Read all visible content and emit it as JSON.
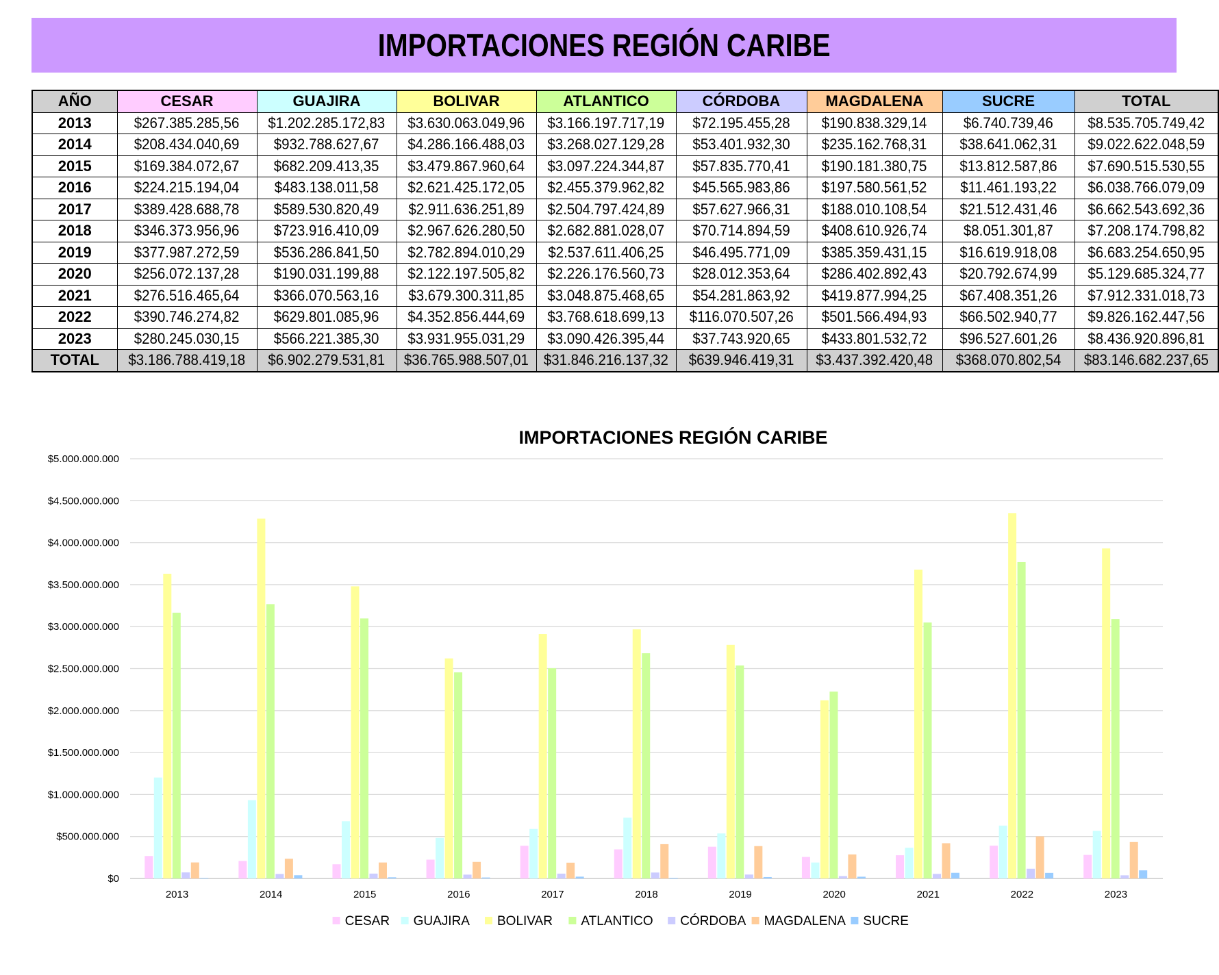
{
  "header": {
    "title": "IMPORTACIONES REGIÓN CARIBE"
  },
  "table": {
    "year_header": "AÑO",
    "columns": [
      {
        "label": "CESAR",
        "color": "#ffccff"
      },
      {
        "label": "GUAJIRA",
        "color": "#ccffff"
      },
      {
        "label": "BOLIVAR",
        "color": "#ffff99"
      },
      {
        "label": "ATLANTICO",
        "color": "#ccff99"
      },
      {
        "label": "CÓRDOBA",
        "color": "#ccccff"
      },
      {
        "label": "MAGDALENA",
        "color": "#ffcc99"
      },
      {
        "label": "SUCRE",
        "color": "#99ccff"
      },
      {
        "label": "TOTAL",
        "color": "#d0d0d0"
      }
    ],
    "rows": [
      {
        "year": "2013",
        "cells": [
          "$267.385.285,56",
          "$1.202.285.172,83",
          "$3.630.063.049,96",
          "$3.166.197.717,19",
          "$72.195.455,28",
          "$190.838.329,14",
          "$6.740.739,46",
          "$8.535.705.749,42"
        ]
      },
      {
        "year": "2014",
        "cells": [
          "$208.434.040,69",
          "$932.788.627,67",
          "$4.286.166.488,03",
          "$3.268.027.129,28",
          "$53.401.932,30",
          "$235.162.768,31",
          "$38.641.062,31",
          "$9.022.622.048,59"
        ]
      },
      {
        "year": "2015",
        "cells": [
          "$169.384.072,67",
          "$682.209.413,35",
          "$3.479.867.960,64",
          "$3.097.224.344,87",
          "$57.835.770,41",
          "$190.181.380,75",
          "$13.812.587,86",
          "$7.690.515.530,55"
        ]
      },
      {
        "year": "2016",
        "cells": [
          "$224.215.194,04",
          "$483.138.011,58",
          "$2.621.425.172,05",
          "$2.455.379.962,82",
          "$45.565.983,86",
          "$197.580.561,52",
          "$11.461.193,22",
          "$6.038.766.079,09"
        ]
      },
      {
        "year": "2017",
        "cells": [
          "$389.428.688,78",
          "$589.530.820,49",
          "$2.911.636.251,89",
          "$2.504.797.424,89",
          "$57.627.966,31",
          "$188.010.108,54",
          "$21.512.431,46",
          "$6.662.543.692,36"
        ]
      },
      {
        "year": "2018",
        "cells": [
          "$346.373.956,96",
          "$723.916.410,09",
          "$2.967.626.280,50",
          "$2.682.881.028,07",
          "$70.714.894,59",
          "$408.610.926,74",
          "$8.051.301,87",
          "$7.208.174.798,82"
        ]
      },
      {
        "year": "2019",
        "cells": [
          "$377.987.272,59",
          "$536.286.841,50",
          "$2.782.894.010,29",
          "$2.537.611.406,25",
          "$46.495.771,09",
          "$385.359.431,15",
          "$16.619.918,08",
          "$6.683.254.650,95"
        ]
      },
      {
        "year": "2020",
        "cells": [
          "$256.072.137,28",
          "$190.031.199,88",
          "$2.122.197.505,82",
          "$2.226.176.560,73",
          "$28.012.353,64",
          "$286.402.892,43",
          "$20.792.674,99",
          "$5.129.685.324,77"
        ]
      },
      {
        "year": "2021",
        "cells": [
          "$276.516.465,64",
          "$366.070.563,16",
          "$3.679.300.311,85",
          "$3.048.875.468,65",
          "$54.281.863,92",
          "$419.877.994,25",
          "$67.408.351,26",
          "$7.912.331.018,73"
        ]
      },
      {
        "year": "2022",
        "cells": [
          "$390.746.274,82",
          "$629.801.085,96",
          "$4.352.856.444,69",
          "$3.768.618.699,13",
          "$116.070.507,26",
          "$501.566.494,93",
          "$66.502.940,77",
          "$9.826.162.447,56"
        ]
      },
      {
        "year": "2023",
        "cells": [
          "$280.245.030,15",
          "$566.221.385,30",
          "$3.931.955.031,29",
          "$3.090.426.395,44",
          "$37.743.920,65",
          "$433.801.532,72",
          "$96.527.601,26",
          "$8.436.920.896,81"
        ]
      }
    ],
    "total_row": {
      "label": "TOTAL",
      "cells": [
        "$3.186.788.419,18",
        "$6.902.279.531,81",
        "$36.765.988.507,01",
        "$31.846.216.137,32",
        "$639.946.419,31",
        "$3.437.392.420,48",
        "$368.070.802,54",
        "$83.146.682.237,65"
      ]
    }
  },
  "chart_data": {
    "type": "bar",
    "title": "IMPORTACIONES REGIÓN CARIBE",
    "xlabel": "",
    "ylabel": "",
    "ylim": [
      0,
      5000000000
    ],
    "yticks": [
      0,
      500000000,
      1000000000,
      1500000000,
      2000000000,
      2500000000,
      3000000000,
      3500000000,
      4000000000,
      4500000000,
      5000000000
    ],
    "ytick_labels": [
      "$0",
      "$500.000.000",
      "$1.000.000.000",
      "$1.500.000.000",
      "$2.000.000.000",
      "$2.500.000.000",
      "$3.000.000.000",
      "$3.500.000.000",
      "$4.000.000.000",
      "$4.500.000.000",
      "$5.000.000.000"
    ],
    "grid": true,
    "legend": "bottom",
    "categories": [
      "2013",
      "2014",
      "2015",
      "2016",
      "2017",
      "2018",
      "2019",
      "2020",
      "2021",
      "2022",
      "2023"
    ],
    "series": [
      {
        "name": "CESAR",
        "color": "#ffccff",
        "values": [
          267385285.56,
          208434040.69,
          169384072.67,
          224215194.04,
          389428688.78,
          346373956.96,
          377987272.59,
          256072137.28,
          276516465.64,
          390746274.82,
          280245030.15
        ]
      },
      {
        "name": "GUAJIRA",
        "color": "#ccffff",
        "values": [
          1202285172.83,
          932788627.67,
          682209413.35,
          483138011.58,
          589530820.49,
          723916410.09,
          536286841.5,
          190031199.88,
          366070563.16,
          629801085.96,
          566221385.3
        ]
      },
      {
        "name": "BOLIVAR",
        "color": "#ffff99",
        "values": [
          3630063049.96,
          4286166488.03,
          3479867960.64,
          2621425172.05,
          2911636251.89,
          2967626280.5,
          2782894010.29,
          2122197505.82,
          3679300311.85,
          4352856444.69,
          3931955031.29
        ]
      },
      {
        "name": "ATLANTICO",
        "color": "#ccff99",
        "values": [
          3166197717.19,
          3268027129.28,
          3097224344.87,
          2455379962.82,
          2504797424.89,
          2682881028.07,
          2537611406.25,
          2226176560.73,
          3048875468.65,
          3768618699.13,
          3090426395.44
        ]
      },
      {
        "name": "CÓRDOBA",
        "color": "#ccccff",
        "values": [
          72195455.28,
          53401932.3,
          57835770.41,
          45565983.86,
          57627966.31,
          70714894.59,
          46495771.09,
          28012353.64,
          54281863.92,
          116070507.26,
          37743920.65
        ]
      },
      {
        "name": "MAGDALENA",
        "color": "#ffcc99",
        "values": [
          190838329.14,
          235162768.31,
          190181380.75,
          197580561.52,
          188010108.54,
          408610926.74,
          385359431.15,
          286402892.43,
          419877994.25,
          501566494.93,
          433801532.72
        ]
      },
      {
        "name": "SUCRE",
        "color": "#99ccff",
        "values": [
          6740739.46,
          38641062.31,
          13812587.86,
          11461193.22,
          21512431.46,
          8051301.87,
          16619918.08,
          20792674.99,
          67408351.26,
          66502940.77,
          96527601.26
        ]
      }
    ]
  }
}
